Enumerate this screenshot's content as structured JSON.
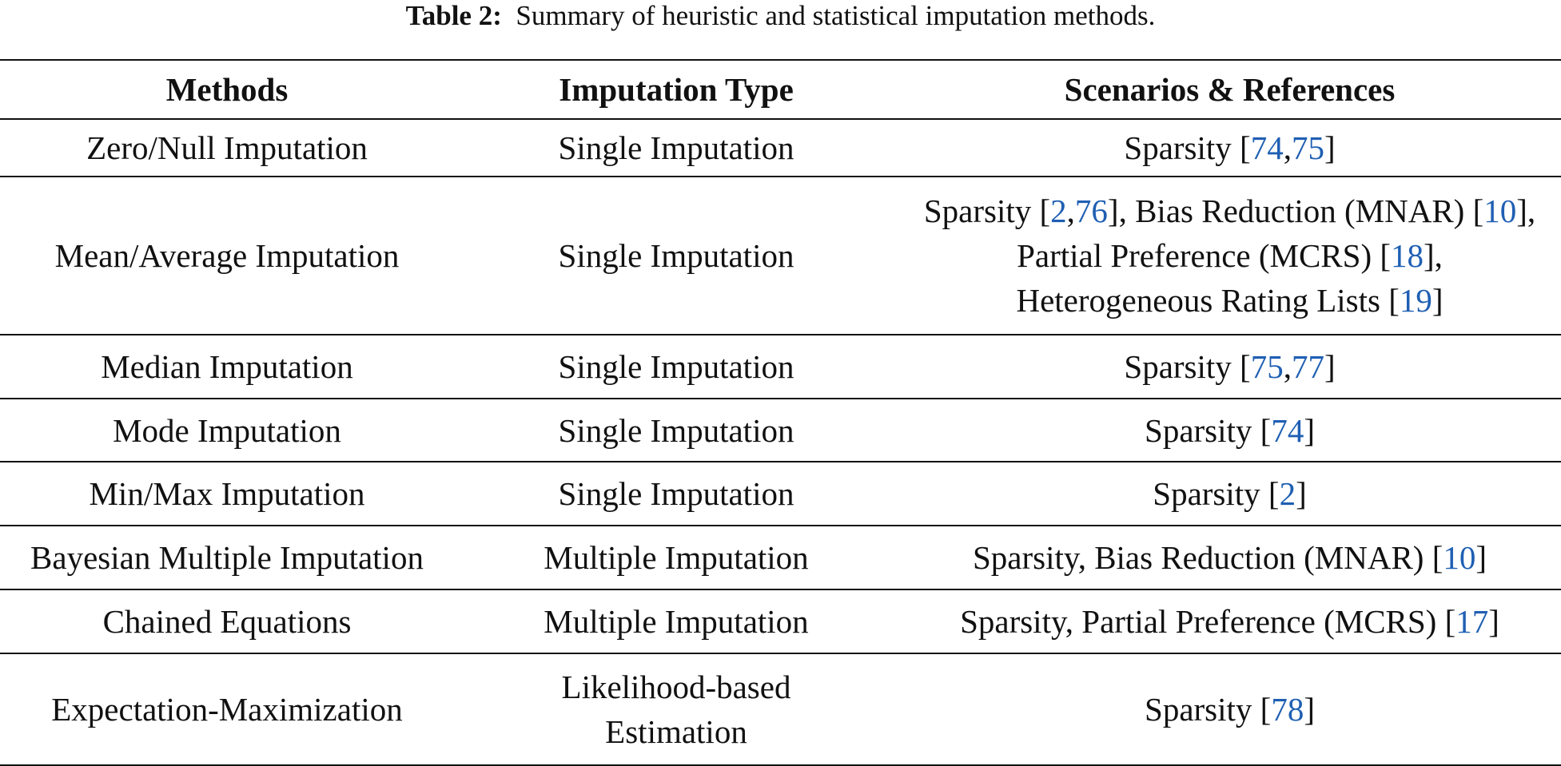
{
  "caption": {
    "label": "Table 2:",
    "text": "Summary of heuristic and statistical imputation methods."
  },
  "table": {
    "headers": [
      "Methods",
      "Imputation Type",
      "Scenarios & References"
    ],
    "rows": [
      {
        "method": "Zero/Null Imputation",
        "type": "Single Imputation",
        "scenario": "Sparsity [74,75]"
      },
      {
        "method": "Mean/Average Imputation",
        "type": "Single Imputation",
        "scenario_lines": [
          "Sparsity [2,76], Bias Reduction (MNAR) [10],",
          "Partial Preference (MCRS) [18],",
          "Heterogeneous Rating Lists [19]"
        ]
      },
      {
        "method": "Median Imputation",
        "type": "Single Imputation",
        "scenario": "Sparsity [75,77]"
      },
      {
        "method": "Mode Imputation",
        "type": "Single Imputation",
        "scenario": "Sparsity [74]"
      },
      {
        "method": "Min/Max Imputation",
        "type": "Single Imputation",
        "scenario": "Sparsity [2]"
      },
      {
        "method": "Bayesian Multiple Imputation",
        "type": "Multiple Imputation",
        "scenario": "Sparsity, Bias Reduction (MNAR) [10]"
      },
      {
        "method": "Chained Equations",
        "type": "Multiple Imputation",
        "scenario": "Sparsity, Partial Preference (MCRS) [17]"
      },
      {
        "method": "Expectation-Maximization",
        "type_lines": [
          "Likelihood-based",
          "Estimation"
        ],
        "scenario": "Sparsity [78]"
      }
    ]
  },
  "colors": {
    "reference_link": "#1f5fb3",
    "text": "#111111"
  }
}
